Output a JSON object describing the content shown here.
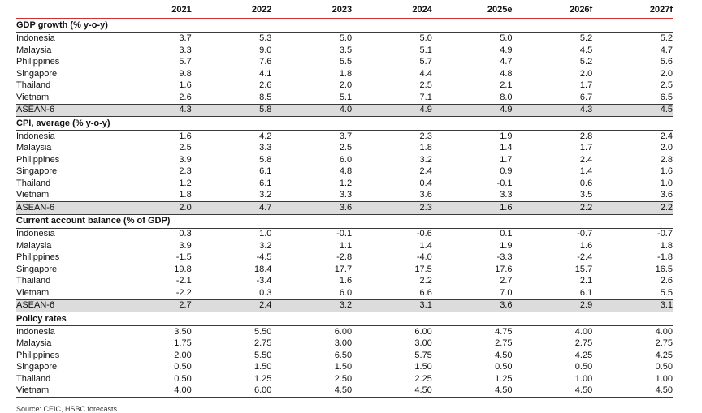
{
  "colors": {
    "accent_red": "#cc3333",
    "rule_dark": "#3a3a3a",
    "highlight_bg": "#dcdcdc",
    "text": "#111111"
  },
  "table": {
    "columns": [
      "",
      "2021",
      "2022",
      "2023",
      "2024",
      "2025e",
      "2026f",
      "2027f"
    ],
    "sections": [
      {
        "title": "GDP growth (% y-o-y)",
        "rows": [
          {
            "label": "Indonesia",
            "highlight": false,
            "values": [
              "3.7",
              "5.3",
              "5.0",
              "5.0",
              "5.0",
              "5.2",
              "5.2"
            ]
          },
          {
            "label": "Malaysia",
            "highlight": false,
            "values": [
              "3.3",
              "9.0",
              "3.5",
              "5.1",
              "4.9",
              "4.5",
              "4.7"
            ]
          },
          {
            "label": "Philippines",
            "highlight": false,
            "values": [
              "5.7",
              "7.6",
              "5.5",
              "5.7",
              "4.7",
              "5.2",
              "5.6"
            ]
          },
          {
            "label": "Singapore",
            "highlight": false,
            "values": [
              "9.8",
              "4.1",
              "1.8",
              "4.4",
              "4.8",
              "2.0",
              "2.0"
            ]
          },
          {
            "label": "Thailand",
            "highlight": false,
            "values": [
              "1.6",
              "2.6",
              "2.0",
              "2.5",
              "2.1",
              "1.7",
              "2.5"
            ]
          },
          {
            "label": "Vietnam",
            "highlight": false,
            "values": [
              "2.6",
              "8.5",
              "5.1",
              "7.1",
              "8.0",
              "6.7",
              "6.5"
            ]
          },
          {
            "label": "ASEAN-6",
            "highlight": true,
            "values": [
              "4.3",
              "5.8",
              "4.0",
              "4.9",
              "4.9",
              "4.3",
              "4.5"
            ]
          }
        ]
      },
      {
        "title": "CPI, average (% y-o-y)",
        "rows": [
          {
            "label": "Indonesia",
            "highlight": false,
            "values": [
              "1.6",
              "4.2",
              "3.7",
              "2.3",
              "1.9",
              "2.8",
              "2.4"
            ]
          },
          {
            "label": "Malaysia",
            "highlight": false,
            "values": [
              "2.5",
              "3.3",
              "2.5",
              "1.8",
              "1.4",
              "1.7",
              "2.0"
            ]
          },
          {
            "label": "Philippines",
            "highlight": false,
            "values": [
              "3.9",
              "5.8",
              "6.0",
              "3.2",
              "1.7",
              "2.4",
              "2.8"
            ]
          },
          {
            "label": "Singapore",
            "highlight": false,
            "values": [
              "2.3",
              "6.1",
              "4.8",
              "2.4",
              "0.9",
              "1.4",
              "1.6"
            ]
          },
          {
            "label": "Thailand",
            "highlight": false,
            "values": [
              "1.2",
              "6.1",
              "1.2",
              "0.4",
              "-0.1",
              "0.6",
              "1.0"
            ]
          },
          {
            "label": "Vietnam",
            "highlight": false,
            "values": [
              "1.8",
              "3.2",
              "3.3",
              "3.6",
              "3.3",
              "3.5",
              "3.6"
            ]
          },
          {
            "label": "ASEAN-6",
            "highlight": true,
            "values": [
              "2.0",
              "4.7",
              "3.6",
              "2.3",
              "1.6",
              "2.2",
              "2.2"
            ]
          }
        ]
      },
      {
        "title": "Current account balance (% of GDP)",
        "rows": [
          {
            "label": "Indonesia",
            "highlight": false,
            "values": [
              "0.3",
              "1.0",
              "-0.1",
              "-0.6",
              "0.1",
              "-0.7",
              "-0.7"
            ]
          },
          {
            "label": "Malaysia",
            "highlight": false,
            "values": [
              "3.9",
              "3.2",
              "1.1",
              "1.4",
              "1.9",
              "1.6",
              "1.8"
            ]
          },
          {
            "label": "Philippines",
            "highlight": false,
            "values": [
              "-1.5",
              "-4.5",
              "-2.8",
              "-4.0",
              "-3.3",
              "-2.4",
              "-1.8"
            ]
          },
          {
            "label": "Singapore",
            "highlight": false,
            "values": [
              "19.8",
              "18.4",
              "17.7",
              "17.5",
              "17.6",
              "15.7",
              "16.5"
            ]
          },
          {
            "label": "Thailand",
            "highlight": false,
            "values": [
              "-2.1",
              "-3.4",
              "1.6",
              "2.2",
              "2.7",
              "2.1",
              "2.6"
            ]
          },
          {
            "label": "Vietnam",
            "highlight": false,
            "values": [
              "-2.2",
              "0.3",
              "6.0",
              "6.6",
              "7.0",
              "6.1",
              "5.5"
            ]
          },
          {
            "label": "ASEAN-6",
            "highlight": true,
            "values": [
              "2.7",
              "2.4",
              "3.2",
              "3.1",
              "3.6",
              "2.9",
              "3.1"
            ]
          }
        ]
      },
      {
        "title": "Policy rates",
        "rows": [
          {
            "label": "Indonesia",
            "highlight": false,
            "values": [
              "3.50",
              "5.50",
              "6.00",
              "6.00",
              "4.75",
              "4.00",
              "4.00"
            ]
          },
          {
            "label": "Malaysia",
            "highlight": false,
            "values": [
              "1.75",
              "2.75",
              "3.00",
              "3.00",
              "2.75",
              "2.75",
              "2.75"
            ]
          },
          {
            "label": "Philippines",
            "highlight": false,
            "values": [
              "2.00",
              "5.50",
              "6.50",
              "5.75",
              "4.50",
              "4.25",
              "4.25"
            ]
          },
          {
            "label": "Singapore",
            "highlight": false,
            "values": [
              "0.50",
              "1.50",
              "1.50",
              "1.50",
              "0.50",
              "0.50",
              "0.50"
            ]
          },
          {
            "label": "Thailand",
            "highlight": false,
            "values": [
              "0.50",
              "1.25",
              "2.50",
              "2.25",
              "1.25",
              "1.00",
              "1.00"
            ]
          },
          {
            "label": "Vietnam",
            "highlight": false,
            "values": [
              "4.00",
              "6.00",
              "4.50",
              "4.50",
              "4.50",
              "4.50",
              "4.50"
            ]
          }
        ]
      }
    ],
    "source": "Source: CEIC, HSBC forecasts"
  }
}
